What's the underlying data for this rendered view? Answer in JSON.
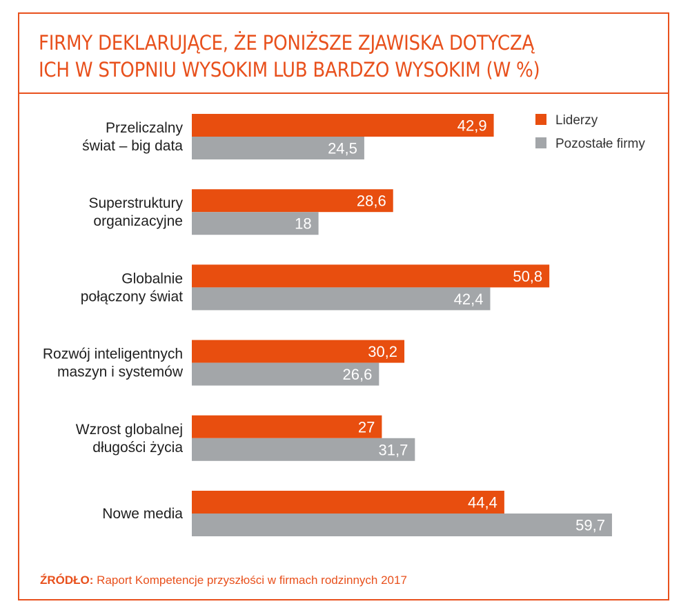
{
  "header": {
    "title_line1": "FIRMY DEKLARUJĄCE, ŻE PONIŻSZE ZJAWISKA DOTYCZĄ",
    "title_line2": "ICH W STOPNIU WYSOKIM LUB BARDZO WYSOKIM (W %)"
  },
  "colors": {
    "accent": "#e8501c",
    "series_1": "#e84e0f",
    "series_2": "#a3a6a9"
  },
  "chart_data": {
    "type": "bar",
    "orientation": "horizontal",
    "title": "FIRMY DEKLARUJĄCE, ŻE PONIŻSZE ZJAWISKA DOTYCZĄ ICH W STOPNIU WYSOKIM LUB BARDZO WYSOKIM (W %)",
    "categories": [
      [
        "Przeliczalny",
        "świat – big data"
      ],
      [
        "Superstruktury",
        "organizacyjne"
      ],
      [
        "Globalnie",
        "połączony świat"
      ],
      [
        "Rozwój inteligentnych",
        "maszyn i systemów"
      ],
      [
        "Wzrost globalnej",
        "długości życia"
      ],
      [
        "Nowe media"
      ]
    ],
    "series": [
      {
        "name": "Liderzy",
        "values": [
          42.9,
          28.6,
          50.8,
          30.2,
          27,
          44.4
        ],
        "labels": [
          "42,9",
          "28,6",
          "50,8",
          "30,2",
          "27",
          "44,4"
        ]
      },
      {
        "name": "Pozostałe firmy",
        "values": [
          24.5,
          18,
          42.4,
          26.6,
          31.7,
          59.7
        ],
        "labels": [
          "24,5",
          "18",
          "42,4",
          "26,6",
          "31,7",
          "59,7"
        ]
      }
    ],
    "xlim": [
      0,
      100
    ],
    "grid": false,
    "legend_position": "top-right"
  },
  "source": {
    "prefix": "ŹRÓDŁO:",
    "text": "Raport Kompetencje przyszłości w firmach rodzinnych 2017"
  }
}
